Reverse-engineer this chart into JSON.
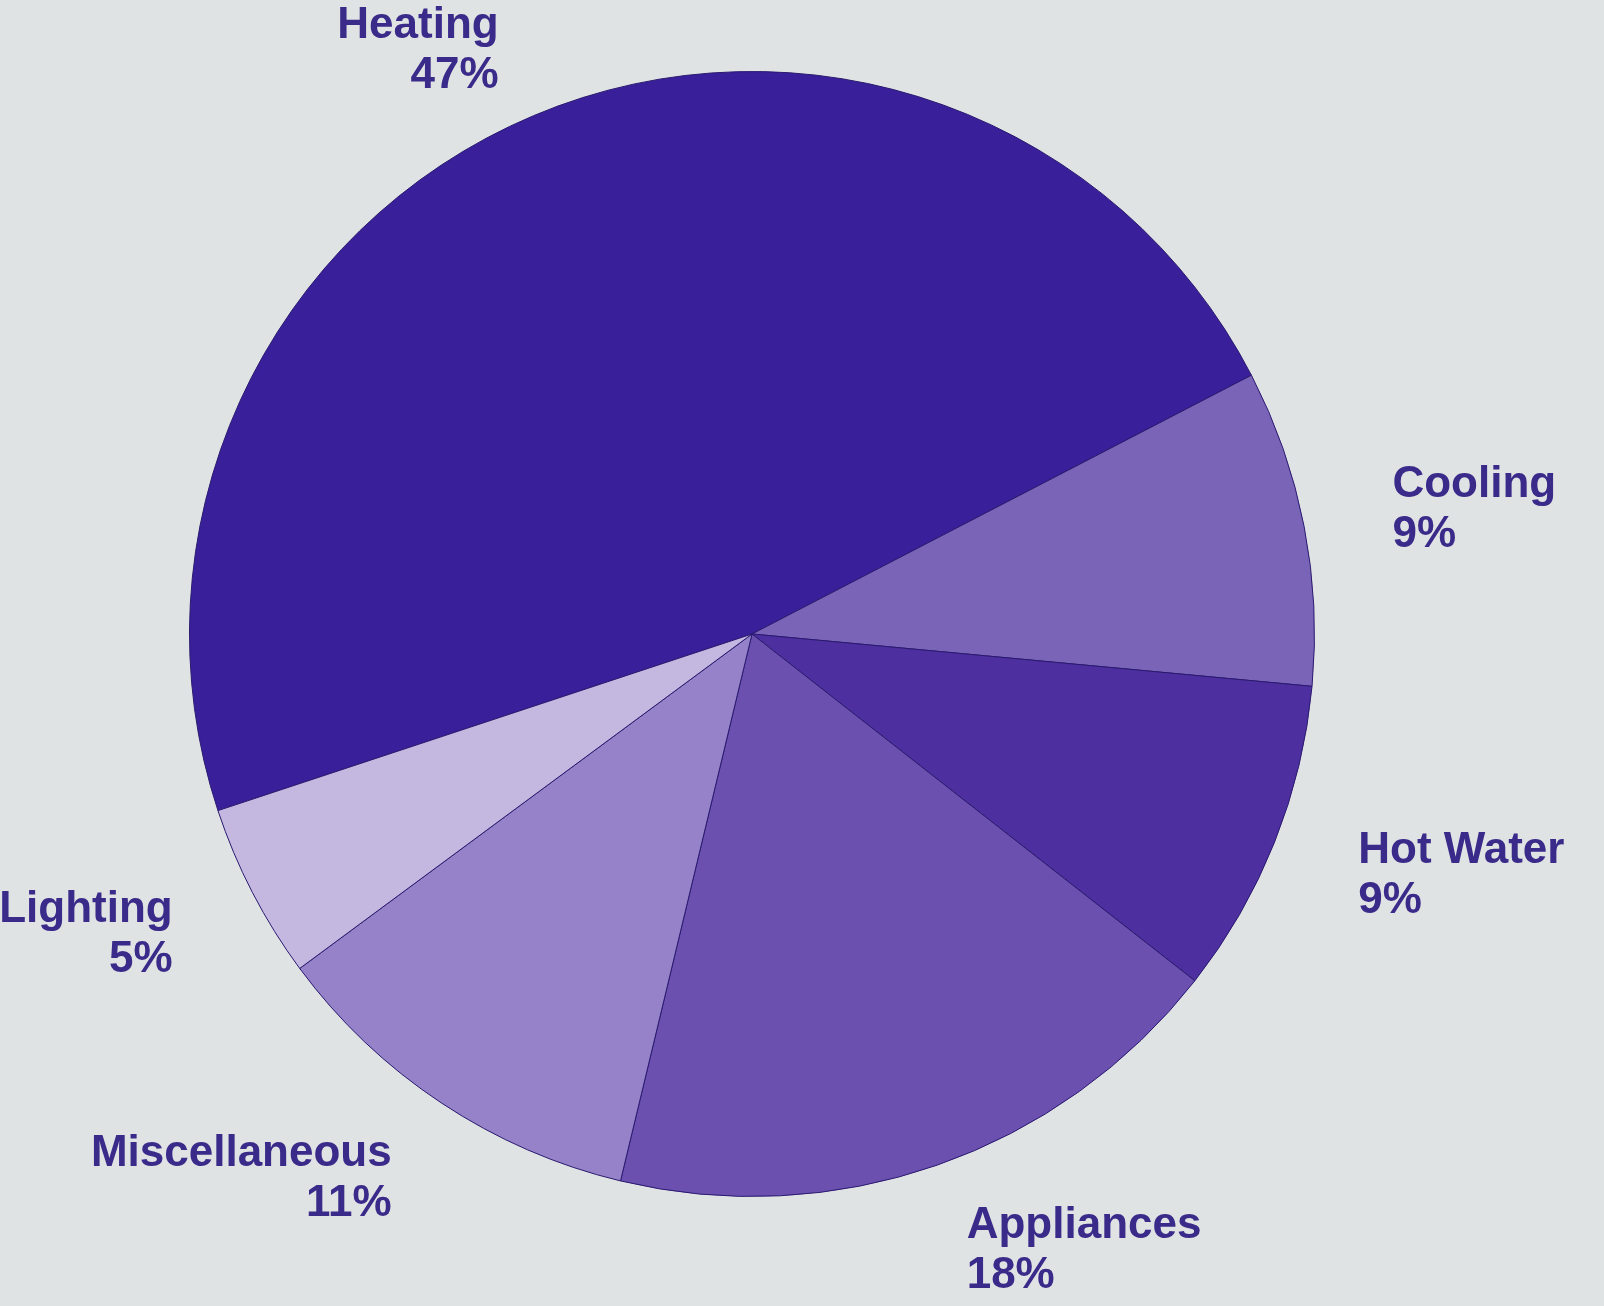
{
  "chart_data": {
    "type": "pie",
    "categories": [
      "Heating",
      "Cooling",
      "Hot Water",
      "Appliances",
      "Miscellaneous",
      "Lighting"
    ],
    "values": [
      47,
      9,
      9,
      18,
      11,
      5
    ],
    "value_labels": [
      "47%",
      "9%",
      "9%",
      "18%",
      "11%",
      "5%"
    ],
    "colors": [
      "#3a1f9a",
      "#7a64b8",
      "#4e2fa0",
      "#6c50b0",
      "#9582c8",
      "#c4b8e0"
    ],
    "legend": false
  }
}
